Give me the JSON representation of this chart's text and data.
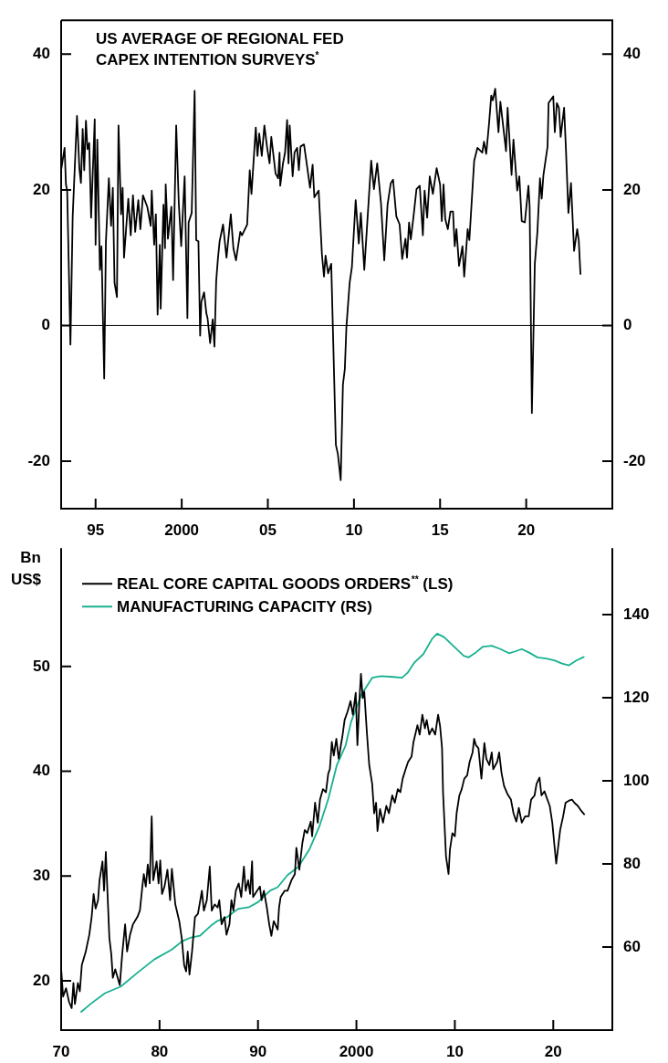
{
  "chart_data": [
    {
      "type": "line",
      "title": "US AVERAGE OF REGIONAL FED CAPEX INTENTION SURVEYS$^{*}$",
      "xlim": [
        1993,
        2025
      ],
      "xticks": [
        {
          "value": 1995,
          "label": "95"
        },
        {
          "value": 2000,
          "label": "2000"
        },
        {
          "value": 2005,
          "label": "05"
        },
        {
          "value": 2010,
          "label": "10"
        },
        {
          "value": 2015,
          "label": "15"
        },
        {
          "value": 2020,
          "label": "20"
        }
      ],
      "ylim": [
        -27,
        45
      ],
      "yticks": [
        -20,
        0,
        20,
        40
      ],
      "y2lim": [
        -27,
        45
      ],
      "y2ticks": [
        -20,
        0,
        20,
        40
      ],
      "ref_lines": [
        {
          "axis": "y",
          "value": 0,
          "color": "#000000"
        }
      ],
      "series": [
        {
          "color": "#000000",
          "x": [
            1993.0,
            1993.2,
            1993.28,
            1993.35,
            1993.54,
            1993.67,
            1993.92,
            1994.06,
            1994.15,
            1994.25,
            1994.34,
            1994.44,
            1994.53,
            1994.63,
            1994.74,
            1994.95,
            1995.0,
            1995.1,
            1995.25,
            1995.34,
            1995.5,
            1995.6,
            1995.77,
            1995.9,
            1996.0,
            1996.1,
            1996.24,
            1996.33,
            1996.48,
            1996.57,
            1996.65,
            1996.9,
            1997.04,
            1997.17,
            1997.3,
            1997.48,
            1997.6,
            1997.75,
            1998.0,
            1998.2,
            1998.26,
            1998.4,
            1998.5,
            1998.6,
            1998.73,
            1998.78,
            1998.94,
            1999.03,
            1999.07,
            1999.2,
            1999.4,
            1999.5,
            1999.68,
            1999.83,
            1999.97,
            2000.17,
            2000.33,
            2000.4,
            2000.58,
            2000.75,
            2000.84,
            2000.97,
            2001.07,
            2001.14,
            2001.3,
            2001.43,
            2001.5,
            2001.65,
            2001.8,
            2001.9,
            2002.0,
            2002.1,
            2002.2,
            2002.4,
            2002.6,
            2002.85,
            2003.0,
            2003.15,
            2003.4,
            2003.5,
            2003.8,
            2003.95,
            2004.05,
            2004.3,
            2004.4,
            2004.5,
            2004.65,
            2004.8,
            2004.96,
            2005.1,
            2005.2,
            2005.45,
            2005.6,
            2005.68,
            2005.72,
            2005.88,
            2006.0,
            2006.12,
            2006.2,
            2006.27,
            2006.44,
            2006.55,
            2006.7,
            2006.8,
            2006.9,
            2007.1,
            2007.3,
            2007.45,
            2007.6,
            2007.7,
            2007.95,
            2008.14,
            2008.26,
            2008.35,
            2008.5,
            2008.68,
            2008.95,
            2009.07,
            2009.23,
            2009.36,
            2009.47,
            2009.56,
            2009.75,
            2009.88,
            2010.1,
            2010.28,
            2010.4,
            2010.6,
            2011.0,
            2011.16,
            2011.35,
            2011.57,
            2011.76,
            2011.95,
            2012.14,
            2012.27,
            2012.46,
            2012.65,
            2012.8,
            2012.99,
            2013.08,
            2013.2,
            2013.3,
            2013.45,
            2013.63,
            2013.82,
            2014.0,
            2014.1,
            2014.25,
            2014.4,
            2014.58,
            2014.8,
            2015.0,
            2015.1,
            2015.2,
            2015.3,
            2015.45,
            2015.6,
            2015.75,
            2015.85,
            2015.95,
            2016.1,
            2016.3,
            2016.4,
            2016.6,
            2016.7,
            2016.98,
            2017.17,
            2017.45,
            2017.55,
            2017.68,
            2017.84,
            2017.97,
            2018.06,
            2018.2,
            2018.39,
            2018.5,
            2018.64,
            2018.83,
            2018.92,
            2019.15,
            2019.26,
            2019.48,
            2019.6,
            2019.74,
            2019.92,
            2020.13,
            2020.2,
            2020.33,
            2020.5,
            2020.65,
            2020.8,
            2020.9,
            2021.0,
            2021.24,
            2021.3,
            2021.57,
            2021.66,
            2021.78,
            2021.9,
            2022.0,
            2022.2,
            2022.3,
            2022.45,
            2022.6,
            2022.78,
            2022.96,
            2023.05,
            2023.15
          ],
          "values": [
            22.9,
            26.2,
            20.8,
            19.9,
            -2.8,
            16.1,
            30.9,
            23.1,
            21,
            29,
            22.9,
            30.2,
            26,
            26.9,
            15.9,
            30.4,
            11.9,
            27.4,
            8.2,
            11.7,
            -7.8,
            12.4,
            21.7,
            14.7,
            20.3,
            6.3,
            4.2,
            29.5,
            16.4,
            20.3,
            10,
            18.7,
            13.3,
            19.2,
            13.8,
            18.5,
            14.2,
            19.2,
            17.5,
            14.7,
            19.9,
            11.9,
            16.4,
            1.6,
            11.9,
            2.5,
            17.8,
            11.4,
            20.8,
            12.8,
            17.5,
            6.7,
            29.5,
            18,
            11.7,
            22,
            1.1,
            15.2,
            16.6,
            34.6,
            12.6,
            12.4,
            -1.5,
            3.5,
            4.9,
            1.8,
            1.1,
            -2.6,
            0.9,
            -3.1,
            6.5,
            9.8,
            12.4,
            14.9,
            10,
            16.4,
            11.4,
            9.6,
            13.8,
            13.3,
            14.9,
            22.9,
            19.4,
            29.2,
            25,
            28.3,
            25,
            29.5,
            26.2,
            23.9,
            27.8,
            22.4,
            21.7,
            25.5,
            20.6,
            23.9,
            25.5,
            30.3,
            23.9,
            29.5,
            22,
            25.5,
            26.2,
            22.9,
            26.4,
            26.7,
            23.1,
            20.3,
            23.7,
            18.9,
            19.9,
            10.5,
            7.2,
            10.3,
            7.7,
            9.1,
            -17.6,
            -19,
            -22.8,
            -8.7,
            -6.4,
            -0.3,
            6.3,
            8.6,
            18.5,
            12.1,
            16.6,
            8.2,
            24.3,
            20.1,
            23.9,
            18,
            9.6,
            17.8,
            21,
            21.5,
            16.1,
            14.9,
            9.8,
            12.8,
            10,
            15.2,
            12.7,
            15.9,
            20.1,
            20.6,
            13.3,
            19.9,
            15.9,
            22,
            19.4,
            23.2,
            20.8,
            15.4,
            20.8,
            15.7,
            14.2,
            16.8,
            16.8,
            11.7,
            14.2,
            8.8,
            11.7,
            7.2,
            14.2,
            12.6,
            24.3,
            26.2,
            25.5,
            27.1,
            25.3,
            29.7,
            33.9,
            33.2,
            34.9,
            28.5,
            33,
            29.9,
            25.7,
            32.1,
            22.2,
            27.4,
            19.9,
            22,
            15.4,
            15.2,
            20.6,
            17.5,
            -12.9,
            9.1,
            13.8,
            21.7,
            18.7,
            22.2,
            26.4,
            32.8,
            33.8,
            28.5,
            32.8,
            32.1,
            27.8,
            32.1,
            26.4,
            16.6,
            21,
            11,
            14.2,
            12.6,
            7.6
          ]
        }
      ]
    },
    {
      "type": "line",
      "ylabel": "Bn US$",
      "legend": "top left",
      "xlim": [
        1970,
        2026
      ],
      "xticks": [
        {
          "value": 1970,
          "label": "70"
        },
        {
          "value": 1980,
          "label": "80"
        },
        {
          "value": 1990,
          "label": "90"
        },
        {
          "value": 2000,
          "label": "2000"
        },
        {
          "value": 2010,
          "label": "10"
        },
        {
          "value": 2020,
          "label": "20"
        }
      ],
      "ylim": [
        15.3,
        61.3
      ],
      "yticks": [
        20,
        30,
        40,
        50
      ],
      "y2lim": [
        40,
        156
      ],
      "y2ticks": [
        60,
        80,
        100,
        120,
        140
      ],
      "series": [
        {
          "name": "REAL CORE CAPITAL GOODS ORDERS$^{**}$ (LS)",
          "color": "#000000",
          "x": [
            1970,
            1970.2,
            1970.5,
            1970.8,
            1971.07,
            1971.25,
            1971.4,
            1971.7,
            1971.9,
            1972.1,
            1972.5,
            1972.86,
            1973.1,
            1973.3,
            1973.5,
            1973.75,
            1973.9,
            1974.2,
            1974.36,
            1974.54,
            1974.7,
            1974.9,
            1975.1,
            1975.25,
            1975.5,
            1975.75,
            1975.96,
            1976.2,
            1976.5,
            1976.7,
            1977,
            1977.3,
            1977.75,
            1978,
            1978.25,
            1978.4,
            1978.6,
            1978.8,
            1979,
            1979.2,
            1979.36,
            1979.7,
            1979.9,
            1980.07,
            1980.25,
            1980.5,
            1980.8,
            1981.07,
            1981.25,
            1981.6,
            1982,
            1982.25,
            1982.5,
            1982.7,
            1982.86,
            1983.04,
            1983.3,
            1983.6,
            1983.9,
            1984.3,
            1984.5,
            1984.8,
            1985.1,
            1985.3,
            1985.6,
            1985.9,
            1986.07,
            1986.3,
            1986.6,
            1986.8,
            1987.1,
            1987.3,
            1987.5,
            1987.75,
            1988.04,
            1988.3,
            1988.57,
            1988.75,
            1989,
            1989.2,
            1989.4,
            1989.5,
            1989.9,
            1990.2,
            1990.36,
            1990.6,
            1990.9,
            1991.14,
            1991.36,
            1991.6,
            1992,
            1992.14,
            1992.3,
            1992.7,
            1993,
            1993.4,
            1993.75,
            1993.9,
            1994.2,
            1994.5,
            1994.75,
            1995,
            1995.36,
            1995.5,
            1995.8,
            1996.07,
            1996.3,
            1996.6,
            1996.9,
            1997.14,
            1997.3,
            1997.5,
            1997.7,
            1997.96,
            1998.2,
            1998.6,
            1998.8,
            1999.1,
            1999.4,
            1999.64,
            1999.93,
            2000.1,
            2000.3,
            2000.46,
            2000.64,
            2000.8,
            2001.07,
            2001.3,
            2001.6,
            2001.8,
            2002,
            2002.14,
            2002.4,
            2002.7,
            2003.04,
            2003.3,
            2003.64,
            2003.9,
            2004.2,
            2004.46,
            2004.7,
            2005,
            2005.25,
            2005.6,
            2005.8,
            2006.2,
            2006.43,
            2006.7,
            2006.96,
            2007.14,
            2007.4,
            2007.7,
            2008,
            2008.3,
            2008.5,
            2008.7,
            2008.8,
            2009.1,
            2009.36,
            2009.5,
            2009.75,
            2010,
            2010.18,
            2010.46,
            2010.7,
            2010.96,
            2011.25,
            2011.5,
            2011.8,
            2011.96,
            2012.14,
            2012.4,
            2012.7,
            2013,
            2013.2,
            2013.5,
            2013.75,
            2013.9,
            2014.3,
            2014.5,
            2014.75,
            2015,
            2015.36,
            2015.7,
            2015.96,
            2016.25,
            2016.5,
            2016.8,
            2017.14,
            2017.5,
            2017.75,
            2018.1,
            2018.3,
            2018.6,
            2018.8,
            2019.1,
            2019.4,
            2019.64,
            2019.9,
            2020.1,
            2020.3,
            2020.46,
            2020.7,
            2021,
            2021.25,
            2021.6,
            2021.9,
            2022.14,
            2022.5,
            2022.86,
            2023.14
          ],
          "values": [
            21.2,
            18.5,
            19.3,
            18,
            17.4,
            19.8,
            17.8,
            19.8,
            19,
            21.5,
            22.8,
            24.4,
            26.1,
            28.3,
            26.9,
            27.7,
            29.6,
            31.4,
            28.6,
            32.3,
            28.6,
            24.1,
            22.5,
            20.3,
            21.1,
            20.3,
            19.6,
            22.5,
            25.4,
            22.8,
            24.4,
            25.4,
            26.1,
            26.7,
            29,
            30.2,
            29,
            31.1,
            29.3,
            35.7,
            29.6,
            31.4,
            29.3,
            31.5,
            28.3,
            29,
            30.6,
            27.7,
            30.7,
            27.3,
            25.7,
            24.1,
            21.5,
            20.9,
            22.8,
            20.6,
            22.8,
            26.1,
            26.4,
            28.6,
            26.7,
            27.7,
            30.9,
            26.7,
            27.3,
            27,
            27.7,
            25.4,
            26.1,
            24.4,
            25.4,
            27.7,
            26.7,
            28.6,
            29.3,
            28,
            30.9,
            28.6,
            29.6,
            28.3,
            31.4,
            28,
            28.6,
            29,
            27.7,
            28.6,
            27,
            25.4,
            24.3,
            25.7,
            24.9,
            27,
            28,
            28.6,
            28.6,
            29.6,
            30.2,
            32.7,
            30.6,
            33.1,
            34.4,
            34.1,
            35.2,
            33.8,
            37,
            35.1,
            37.3,
            38.3,
            38,
            39.8,
            40.2,
            42.8,
            41.5,
            43.1,
            41.2,
            43.5,
            44.9,
            45.7,
            46.7,
            45.4,
            47.5,
            42.5,
            46.7,
            49.3,
            47,
            47.6,
            43.6,
            40.6,
            38.8,
            36,
            37,
            34.3,
            36.4,
            35.1,
            36.7,
            36,
            37.7,
            37,
            38.3,
            38,
            39.3,
            40.2,
            40.9,
            41.4,
            42.8,
            44.4,
            43.5,
            45.4,
            44.1,
            44.9,
            43.5,
            44.1,
            43.5,
            45.4,
            44.3,
            42.2,
            38,
            31.9,
            30.2,
            32.5,
            34.1,
            33.8,
            36,
            37.7,
            38.3,
            39.3,
            39.6,
            40.9,
            41.8,
            43.1,
            42.5,
            42.2,
            39.3,
            42.7,
            41.2,
            40.6,
            41.8,
            40.2,
            40.9,
            41.8,
            39.8,
            38.6,
            37.8,
            37.3,
            36,
            35.2,
            36.5,
            35.1,
            35.7,
            35.7,
            37.3,
            37.7,
            38.8,
            39.4,
            37.7,
            38.1,
            37.3,
            36.7,
            35.1,
            33.1,
            31.2,
            32.5,
            34.4,
            35.7,
            37,
            37.2,
            37.3,
            37,
            36.7,
            36.2,
            35.9
          ]
        },
        {
          "name": "MANUFACTURING CAPACITY (RS)",
          "color": "#17b18f",
          "axis": "y2",
          "x": [
            1972.04,
            1973.04,
            1974.46,
            1976.07,
            1977.7,
            1979.46,
            1981.25,
            1982.3,
            1983.2,
            1984.1,
            1985.2,
            1985.9,
            1986.8,
            1988,
            1989.1,
            1990,
            1991.25,
            1992,
            1993,
            1994.1,
            1995.2,
            1996.25,
            1997.14,
            1998,
            1998.9,
            1999.46,
            2000.5,
            2001.6,
            2002.5,
            2003.75,
            2004.64,
            2005.2,
            2005.9,
            2006.8,
            2007.7,
            2008.2,
            2008.9,
            2010,
            2010.9,
            2011.4,
            2012.14,
            2012.86,
            2013.75,
            2014.64,
            2015.5,
            2016.07,
            2016.8,
            2017.5,
            2018.4,
            2019.3,
            2020.1,
            2020.9,
            2021.6,
            2022.3,
            2023.1
          ],
          "values": [
            44.4,
            46.4,
            48.9,
            50.5,
            53.7,
            57,
            59.4,
            61.4,
            62.3,
            62.7,
            65.1,
            66.3,
            67.1,
            69.2,
            69.6,
            70.8,
            73.6,
            74.4,
            77.3,
            79.3,
            83.4,
            89.1,
            95.6,
            103.7,
            108.5,
            114.2,
            120.7,
            124.8,
            125.2,
            125,
            124.8,
            126,
            128.5,
            130.5,
            134.2,
            135.4,
            134.6,
            132.1,
            130.1,
            129.7,
            130.9,
            132.3,
            132.5,
            131.7,
            130.7,
            131.1,
            131.7,
            130.9,
            129.7,
            129.4,
            129,
            128.2,
            127.8,
            128.9,
            129.8
          ]
        }
      ]
    }
  ]
}
